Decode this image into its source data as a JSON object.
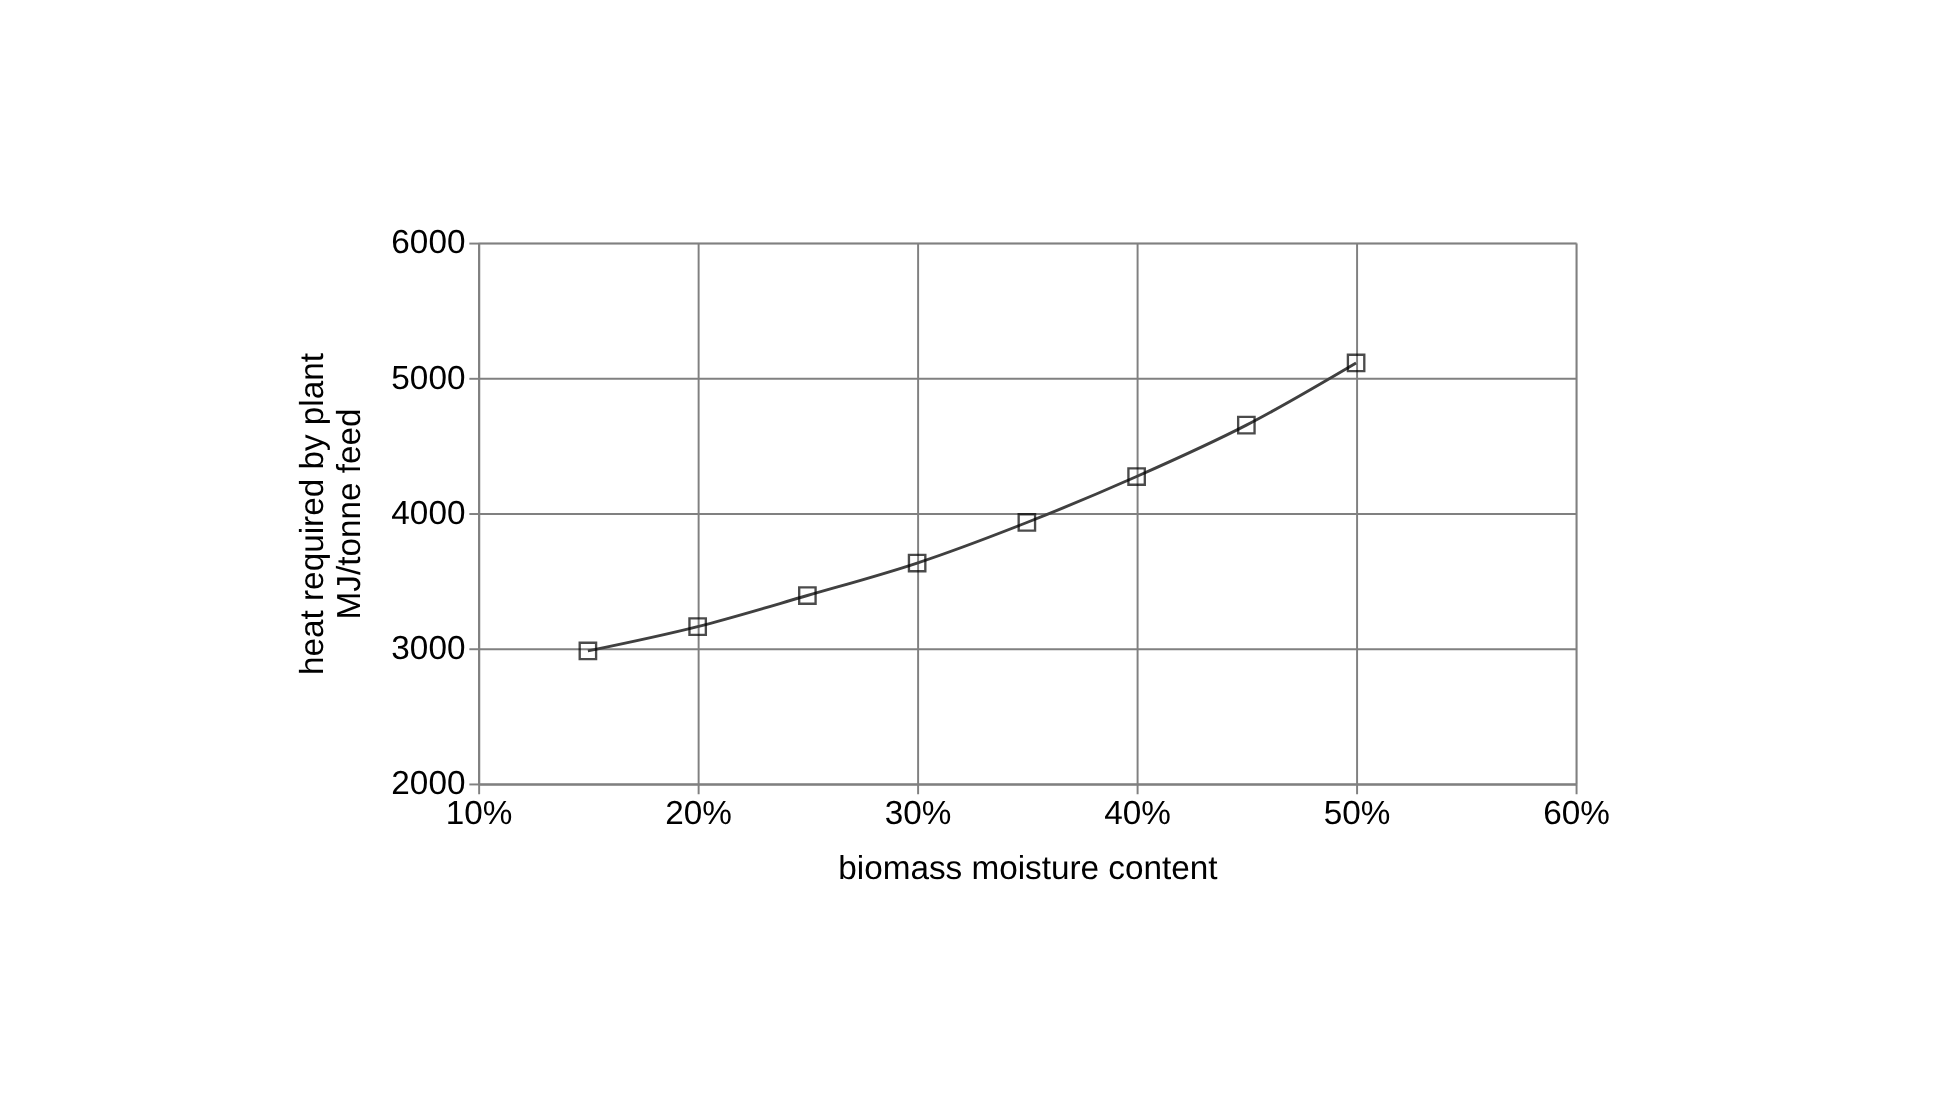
{
  "chart_data": {
    "type": "line",
    "xlabel": "biomass moisture content",
    "ylabel": "heat required by plant MJ/tonne feed",
    "x": [
      15,
      20,
      25,
      30,
      35,
      40,
      45,
      50
    ],
    "series": [
      {
        "color": "#404040",
        "values": [
          2980,
          3160,
          3390,
          3630,
          3930,
          4270,
          4650,
          5110
        ]
      }
    ],
    "xlim": [
      10,
      60
    ],
    "xticks": [
      {
        "value": 10,
        "label": "10%"
      },
      {
        "value": 20,
        "label": "20%"
      },
      {
        "value": 30,
        "label": "30%"
      },
      {
        "value": 40,
        "label": "40%"
      },
      {
        "value": 50,
        "label": "50%"
      },
      {
        "value": 60,
        "label": "60%"
      }
    ],
    "ylim": [
      2000,
      6000
    ],
    "yticks": [
      2000,
      3000,
      4000,
      5000,
      6000
    ],
    "grid": true,
    "marker": "square",
    "line_style": "solid"
  }
}
